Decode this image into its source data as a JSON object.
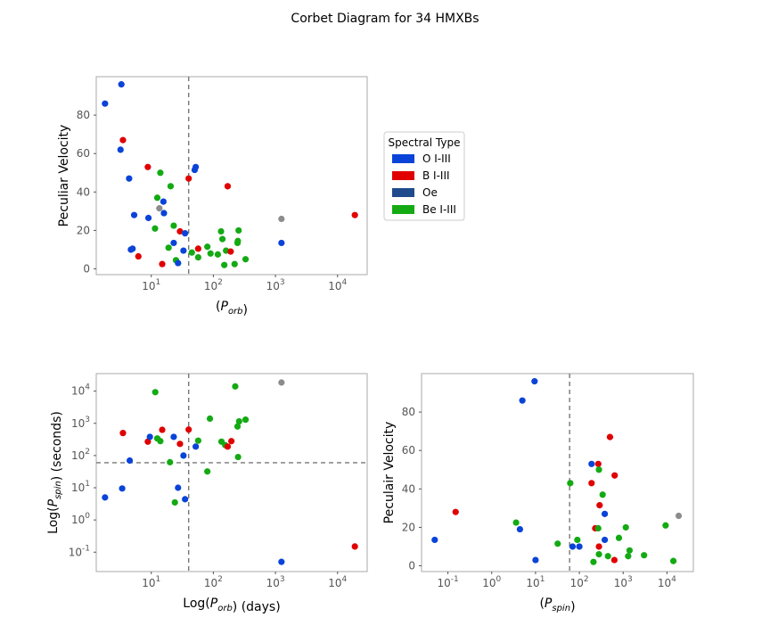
{
  "title": "Corbet Diagram for 34 HMXBs",
  "colors": {
    "O I-III": "#0a43d8",
    "B I-III": "#e00000",
    "Oe": "#1f4a8c",
    "Be I-III": "#13aa13",
    "unknown": "#8c8c8c"
  },
  "legend": {
    "title": "Spectral Type",
    "entries": [
      "O I-III",
      "B I-III",
      "Oe",
      "Be I-III"
    ]
  },
  "chart_data": [
    {
      "type": "scatter",
      "id": "porb_vs_velocity",
      "xlabel": "(P_orb)",
      "ylabel": "Peculiar Velocity",
      "xscale": "log",
      "xlim": [
        1.3,
        30000
      ],
      "ylim": [
        -3,
        100
      ],
      "xticks": [
        10,
        100,
        1000,
        10000
      ],
      "yticks": [
        0,
        20,
        40,
        60,
        80
      ],
      "vline": 40,
      "points": [
        {
          "x": 1.8,
          "y": 86,
          "c": "O I-III"
        },
        {
          "x": 3.3,
          "y": 96,
          "c": "O I-III"
        },
        {
          "x": 3.2,
          "y": 62,
          "c": "O I-III"
        },
        {
          "x": 3.5,
          "y": 67,
          "c": "B I-III"
        },
        {
          "x": 4.4,
          "y": 47,
          "c": "O I-III"
        },
        {
          "x": 5.3,
          "y": 28,
          "c": "O I-III"
        },
        {
          "x": 4.7,
          "y": 10,
          "c": "O I-III"
        },
        {
          "x": 5.0,
          "y": 10.5,
          "c": "O I-III"
        },
        {
          "x": 6.2,
          "y": 6.5,
          "c": "B I-III"
        },
        {
          "x": 8.8,
          "y": 53,
          "c": "B I-III"
        },
        {
          "x": 9.0,
          "y": 26.5,
          "c": "O I-III"
        },
        {
          "x": 11.5,
          "y": 21,
          "c": "Be I-III"
        },
        {
          "x": 12.5,
          "y": 37,
          "c": "Be I-III"
        },
        {
          "x": 13.5,
          "y": 31.5,
          "c": "unknown"
        },
        {
          "x": 14.0,
          "y": 50,
          "c": "Be I-III"
        },
        {
          "x": 15.0,
          "y": 2.5,
          "c": "B I-III"
        },
        {
          "x": 15.7,
          "y": 35,
          "c": "O I-III"
        },
        {
          "x": 16.0,
          "y": 29,
          "c": "O I-III"
        },
        {
          "x": 19.0,
          "y": 11,
          "c": "Be I-III"
        },
        {
          "x": 20.5,
          "y": 43,
          "c": "Be I-III"
        },
        {
          "x": 23.0,
          "y": 22.5,
          "c": "Be I-III"
        },
        {
          "x": 23.0,
          "y": 13.5,
          "c": "O I-III"
        },
        {
          "x": 25.0,
          "y": 4.5,
          "c": "Be I-III"
        },
        {
          "x": 27.0,
          "y": 3,
          "c": "O I-III"
        },
        {
          "x": 29.0,
          "y": 19.5,
          "c": "B I-III"
        },
        {
          "x": 33.0,
          "y": 9.5,
          "c": "O I-III"
        },
        {
          "x": 35.0,
          "y": 18.5,
          "c": "O I-III"
        },
        {
          "x": 40.0,
          "y": 47,
          "c": "B I-III"
        },
        {
          "x": 45.0,
          "y": 8.5,
          "c": "Be I-III"
        },
        {
          "x": 50.0,
          "y": 51.5,
          "c": "O I-III"
        },
        {
          "x": 52.0,
          "y": 53,
          "c": "O I-III"
        },
        {
          "x": 57.0,
          "y": 6,
          "c": "Be I-III"
        },
        {
          "x": 57.0,
          "y": 10.5,
          "c": "B I-III"
        },
        {
          "x": 80.0,
          "y": 11.5,
          "c": "Be I-III"
        },
        {
          "x": 90.0,
          "y": 8,
          "c": "Be I-III"
        },
        {
          "x": 118.0,
          "y": 7.5,
          "c": "Be I-III"
        },
        {
          "x": 133.0,
          "y": 19.5,
          "c": "Be I-III"
        },
        {
          "x": 140.0,
          "y": 15.5,
          "c": "Be I-III"
        },
        {
          "x": 150.0,
          "y": 2,
          "c": "Be I-III"
        },
        {
          "x": 160.0,
          "y": 9.5,
          "c": "Be I-III"
        },
        {
          "x": 170.0,
          "y": 43,
          "c": "B I-III"
        },
        {
          "x": 190.0,
          "y": 9,
          "c": "B I-III"
        },
        {
          "x": 220.0,
          "y": 2.5,
          "c": "Be I-III"
        },
        {
          "x": 245.0,
          "y": 13.5,
          "c": "Be I-III"
        },
        {
          "x": 248.0,
          "y": 14.5,
          "c": "Be I-III"
        },
        {
          "x": 255.0,
          "y": 20,
          "c": "Be I-III"
        },
        {
          "x": 330.0,
          "y": 5,
          "c": "Be I-III"
        },
        {
          "x": 1250.0,
          "y": 26,
          "c": "unknown"
        },
        {
          "x": 1250.0,
          "y": 13.5,
          "c": "O I-III"
        },
        {
          "x": 19000.0,
          "y": 28,
          "c": "B I-III"
        }
      ]
    },
    {
      "type": "scatter",
      "id": "porb_vs_pspin",
      "xlabel": "Log(P_orb) (days)",
      "ylabel": "Log(P_spin) (seconds)",
      "xscale": "log",
      "yscale": "log",
      "xlim": [
        1.3,
        30000
      ],
      "ylim": [
        0.025,
        35000
      ],
      "xticks": [
        10,
        100,
        1000,
        10000
      ],
      "yticks": [
        0.1,
        1,
        10,
        100,
        1000,
        10000
      ],
      "vline": 40,
      "hline": 60,
      "points": [
        {
          "x": 1.8,
          "y": 5,
          "c": "O I-III"
        },
        {
          "x": 3.4,
          "y": 9.5,
          "c": "O I-III"
        },
        {
          "x": 3.5,
          "y": 500,
          "c": "B I-III"
        },
        {
          "x": 4.5,
          "y": 70,
          "c": "O I-III"
        },
        {
          "x": 8.8,
          "y": 270,
          "c": "B I-III"
        },
        {
          "x": 9.5,
          "y": 380,
          "c": "O I-III"
        },
        {
          "x": 11.6,
          "y": 9300,
          "c": "Be I-III"
        },
        {
          "x": 12.5,
          "y": 340,
          "c": "Be I-III"
        },
        {
          "x": 14.0,
          "y": 280,
          "c": "Be I-III"
        },
        {
          "x": 15.0,
          "y": 630,
          "c": "B I-III"
        },
        {
          "x": 20.0,
          "y": 62,
          "c": "Be I-III"
        },
        {
          "x": 23.0,
          "y": 380,
          "c": "O I-III"
        },
        {
          "x": 24.0,
          "y": 3.5,
          "c": "Be I-III"
        },
        {
          "x": 27.0,
          "y": 10,
          "c": "O I-III"
        },
        {
          "x": 29.0,
          "y": 230,
          "c": "B I-III"
        },
        {
          "x": 33.0,
          "y": 100,
          "c": "O I-III"
        },
        {
          "x": 35.0,
          "y": 4.4,
          "c": "O I-III"
        },
        {
          "x": 40.0,
          "y": 640,
          "c": "B I-III"
        },
        {
          "x": 52.0,
          "y": 190,
          "c": "O I-III"
        },
        {
          "x": 57.0,
          "y": 290,
          "c": "Be I-III"
        },
        {
          "x": 80.0,
          "y": 32,
          "c": "Be I-III"
        },
        {
          "x": 88.0,
          "y": 1400,
          "c": "Be I-III"
        },
        {
          "x": 135.0,
          "y": 270,
          "c": "Be I-III"
        },
        {
          "x": 155.0,
          "y": 210,
          "c": "Be I-III"
        },
        {
          "x": 170.0,
          "y": 190,
          "c": "B I-III"
        },
        {
          "x": 195.0,
          "y": 280,
          "c": "B I-III"
        },
        {
          "x": 225.0,
          "y": 14000,
          "c": "Be I-III"
        },
        {
          "x": 245.0,
          "y": 800,
          "c": "Be I-III"
        },
        {
          "x": 250.0,
          "y": 90,
          "c": "Be I-III"
        },
        {
          "x": 260.0,
          "y": 1150,
          "c": "Be I-III"
        },
        {
          "x": 330.0,
          "y": 1300,
          "c": "Be I-III"
        },
        {
          "x": 1250.0,
          "y": 18500,
          "c": "unknown"
        },
        {
          "x": 1250.0,
          "y": 0.05,
          "c": "O I-III"
        },
        {
          "x": 19000.0,
          "y": 0.15,
          "c": "B I-III"
        }
      ]
    },
    {
      "type": "scatter",
      "id": "pspin_vs_velocity",
      "xlabel": "(P_spin)",
      "ylabel": "Peculair Velocity",
      "xscale": "log",
      "xlim": [
        0.025,
        40000
      ],
      "ylim": [
        -3,
        100
      ],
      "xticks": [
        0.1,
        1,
        10,
        100,
        1000,
        10000
      ],
      "yticks": [
        0,
        20,
        40,
        60,
        80
      ],
      "vline": 60,
      "points": [
        {
          "x": 0.05,
          "y": 13.5,
          "c": "O I-III"
        },
        {
          "x": 0.15,
          "y": 28,
          "c": "B I-III"
        },
        {
          "x": 3.6,
          "y": 22.5,
          "c": "Be I-III"
        },
        {
          "x": 4.4,
          "y": 19,
          "c": "O I-III"
        },
        {
          "x": 5.0,
          "y": 86,
          "c": "O I-III"
        },
        {
          "x": 9.5,
          "y": 96,
          "c": "O I-III"
        },
        {
          "x": 10.0,
          "y": 3,
          "c": "O I-III"
        },
        {
          "x": 32.0,
          "y": 11.5,
          "c": "Be I-III"
        },
        {
          "x": 62.0,
          "y": 43,
          "c": "Be I-III"
        },
        {
          "x": 70.0,
          "y": 10,
          "c": "O I-III"
        },
        {
          "x": 90.0,
          "y": 13.5,
          "c": "Be I-III"
        },
        {
          "x": 100.0,
          "y": 10,
          "c": "O I-III"
        },
        {
          "x": 190.0,
          "y": 53,
          "c": "O I-III"
        },
        {
          "x": 190.0,
          "y": 43,
          "c": "B I-III"
        },
        {
          "x": 210.0,
          "y": 2,
          "c": "Be I-III"
        },
        {
          "x": 230.0,
          "y": 19.5,
          "c": "B I-III"
        },
        {
          "x": 270.0,
          "y": 19.5,
          "c": "Be I-III"
        },
        {
          "x": 270.0,
          "y": 53,
          "c": "B I-III"
        },
        {
          "x": 280.0,
          "y": 10,
          "c": "B I-III"
        },
        {
          "x": 280.0,
          "y": 6,
          "c": "Be I-III"
        },
        {
          "x": 280.0,
          "y": 50,
          "c": "Be I-III"
        },
        {
          "x": 290.0,
          "y": 31.5,
          "c": "B I-III"
        },
        {
          "x": 340.0,
          "y": 37,
          "c": "Be I-III"
        },
        {
          "x": 380.0,
          "y": 27,
          "c": "O I-III"
        },
        {
          "x": 380.0,
          "y": 13.5,
          "c": "O I-III"
        },
        {
          "x": 450.0,
          "y": 5,
          "c": "Be I-III"
        },
        {
          "x": 500.0,
          "y": 67,
          "c": "B I-III"
        },
        {
          "x": 630.0,
          "y": 3,
          "c": "B I-III"
        },
        {
          "x": 640.0,
          "y": 47,
          "c": "B I-III"
        },
        {
          "x": 800.0,
          "y": 14.5,
          "c": "Be I-III"
        },
        {
          "x": 1150.0,
          "y": 20,
          "c": "Be I-III"
        },
        {
          "x": 1300.0,
          "y": 5,
          "c": "Be I-III"
        },
        {
          "x": 1400.0,
          "y": 8,
          "c": "Be I-III"
        },
        {
          "x": 3000.0,
          "y": 5.5,
          "c": "Be I-III"
        },
        {
          "x": 9300.0,
          "y": 21,
          "c": "Be I-III"
        },
        {
          "x": 14000.0,
          "y": 2.5,
          "c": "Be I-III"
        },
        {
          "x": 18500.0,
          "y": 26,
          "c": "unknown"
        }
      ]
    }
  ]
}
